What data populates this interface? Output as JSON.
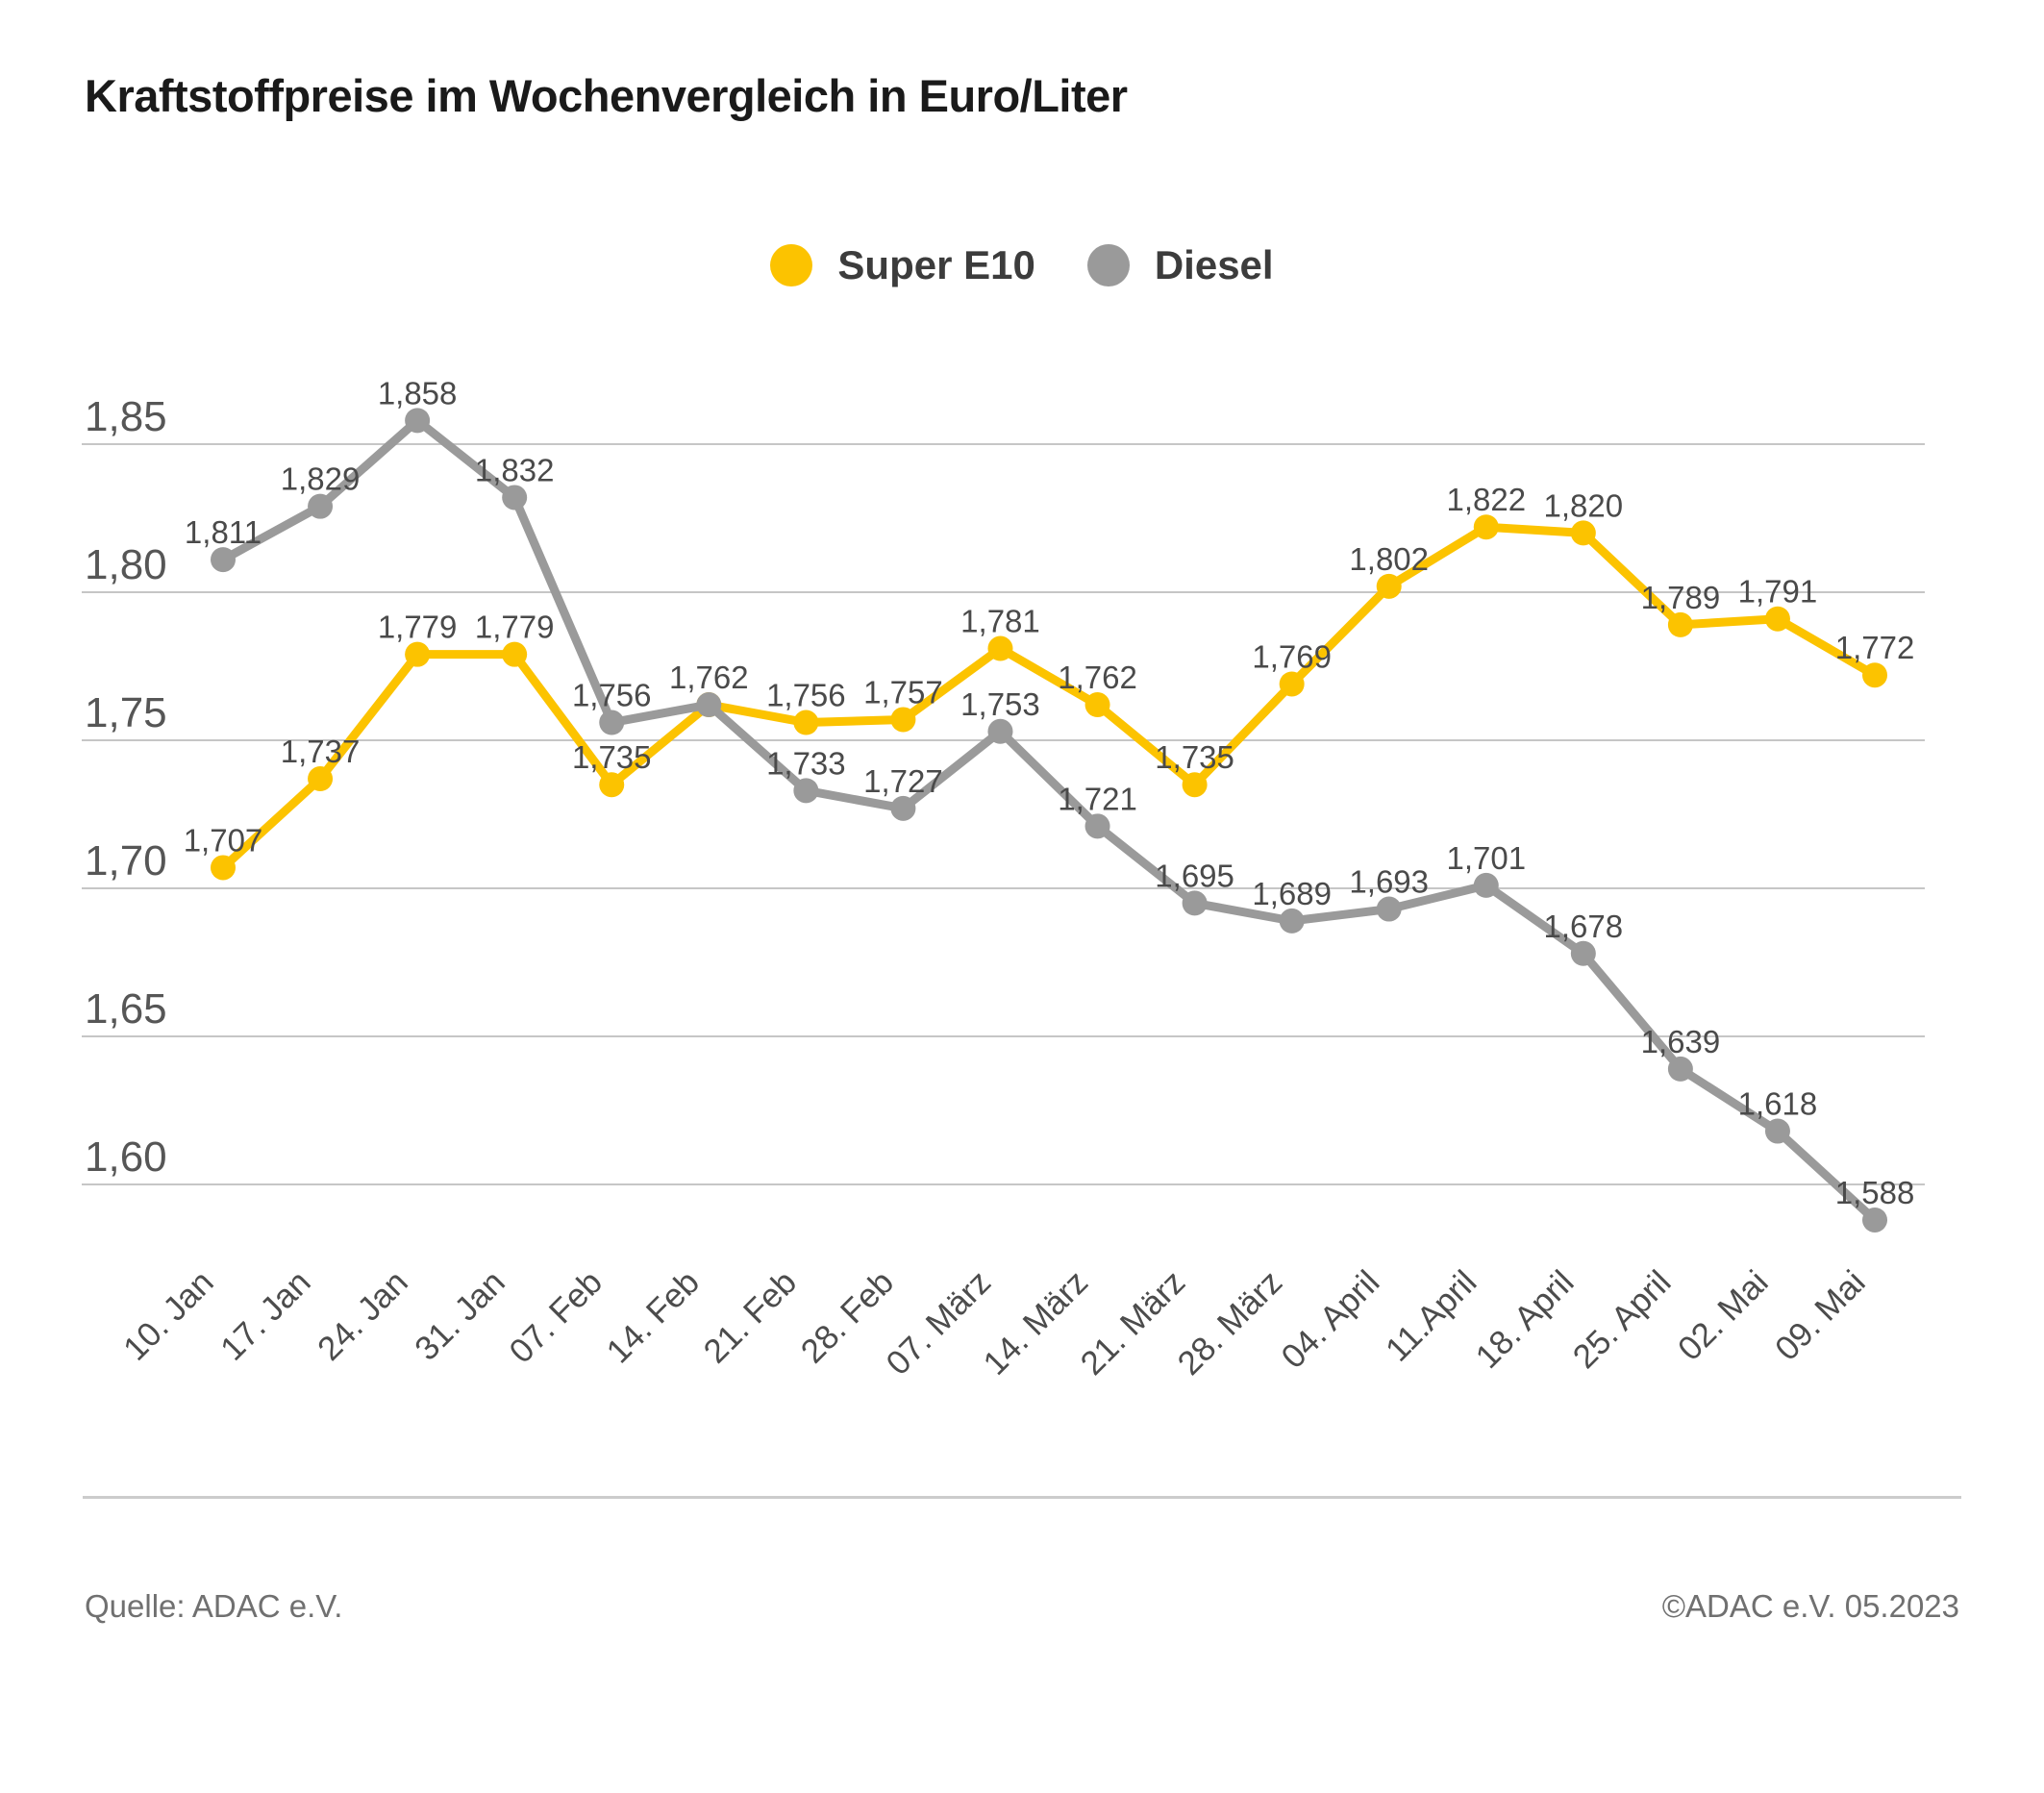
{
  "title": "Kraftstoffpreise im Wochenvergleich in Euro/Liter",
  "footer": {
    "source": "Quelle: ADAC e.V.",
    "copyright": "©ADAC e.V. 05.2023"
  },
  "colors": {
    "super_e10": "#FCC300",
    "diesel": "#9A9A9A",
    "gridline": "#C6C6C6",
    "tick_label": "#565656",
    "data_label": "#4A4A4A",
    "title_text": "#1A1A1A",
    "footer_text": "#707070"
  },
  "chart_data": {
    "type": "line",
    "title": "Kraftstoffpreise im Wochenvergleich in Euro/Liter",
    "xlabel": "",
    "ylabel": "Euro/Liter",
    "legend_position": "top",
    "grid": true,
    "x_tick_rotation": -45,
    "ylim": [
      1.57,
      1.88
    ],
    "y_ticks": [
      {
        "value": 1.85,
        "label": "1,85"
      },
      {
        "value": 1.8,
        "label": "1,80"
      },
      {
        "value": 1.75,
        "label": "1,75"
      },
      {
        "value": 1.7,
        "label": "1,70"
      },
      {
        "value": 1.65,
        "label": "1,65"
      },
      {
        "value": 1.6,
        "label": "1,60"
      }
    ],
    "categories": [
      "10. Jan",
      "17. Jan",
      "24. Jan",
      "31. Jan",
      "07. Feb",
      "14. Feb",
      "21. Feb",
      "28. Feb",
      "07. März",
      "14. März",
      "21. März",
      "28. März",
      "04. April",
      "11.April",
      "18. April",
      "25. April",
      "02. Mai",
      "09. Mai"
    ],
    "series": [
      {
        "name": "Super E10",
        "color": "#FCC300",
        "values": [
          1.707,
          1.737,
          1.779,
          1.779,
          1.735,
          1.762,
          1.756,
          1.757,
          1.781,
          1.762,
          1.735,
          1.769,
          1.802,
          1.822,
          1.82,
          1.789,
          1.791,
          1.772
        ],
        "labels": [
          "1,707",
          "1,737",
          "1,779",
          "1,779",
          "1,735",
          "",
          "1,756",
          "1,757",
          "1,781",
          "1,762",
          "1,735",
          "1,769",
          "1,802",
          "1,822",
          "1,820",
          "1,789",
          "1,791",
          "1,772"
        ]
      },
      {
        "name": "Diesel",
        "color": "#9A9A9A",
        "values": [
          1.811,
          1.829,
          1.858,
          1.832,
          1.756,
          1.762,
          1.733,
          1.727,
          1.753,
          1.721,
          1.695,
          1.689,
          1.693,
          1.701,
          1.678,
          1.639,
          1.618,
          1.588
        ],
        "labels": [
          "1,811",
          "1,829",
          "1,858",
          "1,832",
          "1,756",
          "1,762",
          "1,733",
          "1,727",
          "1,753",
          "1,721",
          "1,695",
          "1,689",
          "1,693",
          "1,701",
          "1,678",
          "1,639",
          "1,618",
          "1,588"
        ]
      }
    ]
  }
}
